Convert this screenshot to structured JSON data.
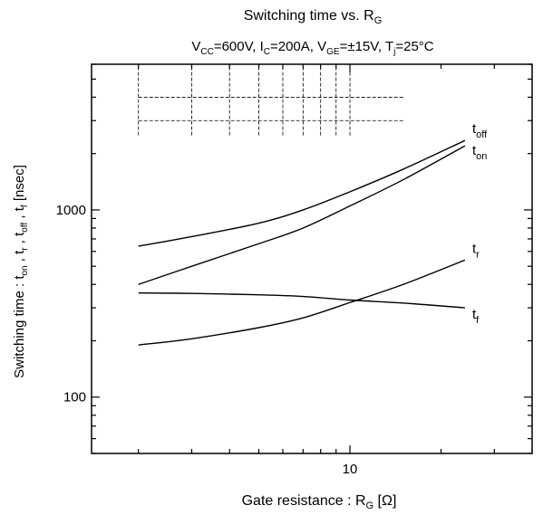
{
  "chart_data": {
    "type": "line",
    "title": {
      "main": "Switching time vs. R",
      "main_sub": "G",
      "cond_vcc": "V",
      "cond_vcc_sub": "CC",
      "cond_vcc_val": "=600V, I",
      "cond_ic_sub": "C",
      "cond_ic_val": "=200A, V",
      "cond_vge_sub": "GE",
      "cond_vge_val": "=±15V, T",
      "cond_tj_sub": "j",
      "cond_tj_val": "=25°C"
    },
    "xlabel": {
      "main": "Gate resistance : R",
      "sub": "G",
      "unit": " [Ω]"
    },
    "ylabel": {
      "p1": "Switching time : t",
      "s1": "on",
      "p2": " , t",
      "s2": "r",
      "p3": " , t",
      "s3": "off",
      "p4": " , t",
      "s4": "f",
      "p5": " [nsec]"
    },
    "x_scale": "log",
    "y_scale": "log",
    "xlim": [
      1.4,
      40
    ],
    "ylim": [
      50,
      6000
    ],
    "x_ticks": [
      {
        "value": 10,
        "label": "10"
      }
    ],
    "y_ticks": [
      {
        "value": 100,
        "label": "100"
      },
      {
        "value": 1000,
        "label": "1000"
      }
    ],
    "grid": "partial-dashed-top-left",
    "series": [
      {
        "name": "t",
        "name_sub": "off",
        "x": [
          2,
          3,
          5,
          7,
          10,
          15,
          24
        ],
        "y": [
          640,
          720,
          850,
          1000,
          1250,
          1650,
          2350
        ]
      },
      {
        "name": "t",
        "name_sub": "on",
        "x": [
          2,
          3,
          5,
          7,
          10,
          15,
          24
        ],
        "y": [
          400,
          500,
          660,
          800,
          1050,
          1450,
          2200
        ]
      },
      {
        "name": "t",
        "name_sub": "r",
        "x": [
          2,
          3,
          5,
          7,
          10,
          15,
          24
        ],
        "y": [
          190,
          205,
          235,
          265,
          320,
          400,
          540
        ]
      },
      {
        "name": "t",
        "name_sub": "f",
        "x": [
          2,
          3,
          5,
          7,
          10,
          15,
          24
        ],
        "y": [
          360,
          358,
          352,
          345,
          330,
          318,
          300
        ]
      }
    ]
  }
}
